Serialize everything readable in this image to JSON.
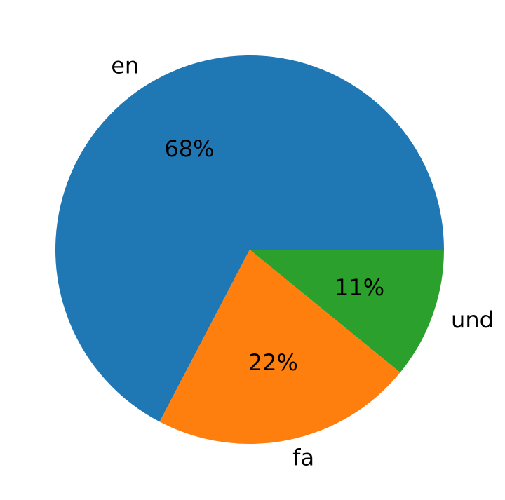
{
  "chart_data": {
    "type": "pie",
    "categories": [
      "en",
      "fa",
      "und"
    ],
    "values": [
      68,
      22,
      11
    ],
    "value_labels": [
      "68%",
      "22%",
      "11%"
    ],
    "colors": [
      "#1f77b4",
      "#ff7f0e",
      "#2ca02c"
    ]
  }
}
